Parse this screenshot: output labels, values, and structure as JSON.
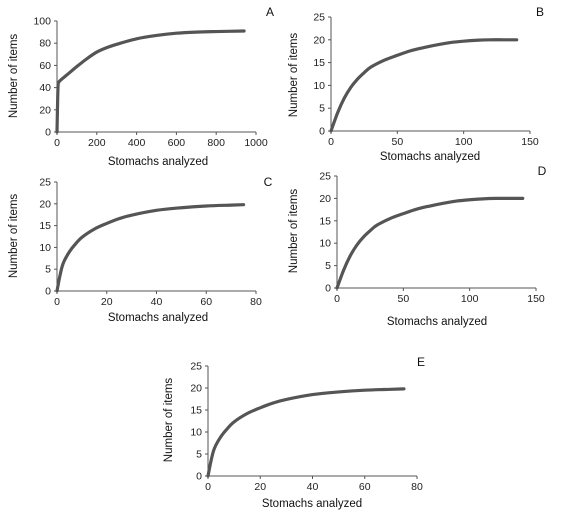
{
  "chart_data": [
    {
      "panel": "A",
      "type": "line",
      "xlabel": "Stomachs analyzed",
      "ylabel": "Number of items",
      "xlim": [
        0,
        1000
      ],
      "ylim": [
        0,
        100
      ],
      "xticks": [
        0,
        200,
        400,
        600,
        800,
        1000
      ],
      "yticks": [
        0,
        20,
        40,
        60,
        80,
        100
      ],
      "x": [
        0,
        5,
        10,
        20,
        40,
        60,
        100,
        150,
        200,
        250,
        300,
        400,
        500,
        600,
        700,
        800,
        940
      ],
      "y": [
        0,
        40,
        45,
        47,
        50,
        53,
        59,
        66,
        72,
        76,
        79,
        84,
        87,
        89,
        90,
        90.5,
        91
      ]
    },
    {
      "panel": "B",
      "type": "line",
      "xlabel": "Stomachs analyzed",
      "ylabel": "Number of items",
      "xlim": [
        0,
        150
      ],
      "ylim": [
        0,
        25
      ],
      "xticks": [
        0,
        50,
        100,
        150
      ],
      "yticks": [
        0,
        5,
        10,
        15,
        20,
        25
      ],
      "x": [
        0,
        5,
        10,
        15,
        20,
        25,
        30,
        40,
        50,
        60,
        70,
        80,
        90,
        100,
        110,
        120,
        130,
        140
      ],
      "y": [
        0,
        4,
        7.2,
        9.6,
        11.4,
        12.8,
        14,
        15.5,
        16.6,
        17.6,
        18.3,
        18.9,
        19.4,
        19.7,
        19.9,
        20,
        20,
        20
      ]
    },
    {
      "panel": "C",
      "type": "line",
      "xlabel": "Stomachs analyzed",
      "ylabel": "Number of items",
      "xlim": [
        0,
        80
      ],
      "ylim": [
        0,
        25
      ],
      "xticks": [
        0,
        20,
        40,
        60,
        80
      ],
      "yticks": [
        0,
        5,
        10,
        15,
        20,
        25
      ],
      "x": [
        0,
        1,
        2,
        3,
        5,
        7,
        10,
        15,
        20,
        25,
        30,
        40,
        50,
        60,
        70,
        75
      ],
      "y": [
        0,
        3,
        5.5,
        7,
        9,
        10.5,
        12.3,
        14.2,
        15.5,
        16.6,
        17.4,
        18.5,
        19.1,
        19.5,
        19.7,
        19.8
      ]
    },
    {
      "panel": "D",
      "type": "line",
      "xlabel": "Stomachs analyzed",
      "ylabel": "Number of items",
      "xlim": [
        0,
        150
      ],
      "ylim": [
        0,
        25
      ],
      "xticks": [
        0,
        50,
        100,
        150
      ],
      "yticks": [
        0,
        5,
        10,
        15,
        20,
        25
      ],
      "x": [
        0,
        5,
        10,
        15,
        20,
        25,
        30,
        40,
        50,
        60,
        70,
        80,
        90,
        100,
        110,
        120,
        130,
        140
      ],
      "y": [
        0,
        4,
        7.2,
        9.6,
        11.4,
        12.8,
        14,
        15.5,
        16.6,
        17.6,
        18.3,
        18.9,
        19.4,
        19.7,
        19.9,
        20,
        20,
        20
      ]
    },
    {
      "panel": "E",
      "type": "line",
      "xlabel": "Stomachs analyzed",
      "ylabel": "Number of items",
      "xlim": [
        0,
        80
      ],
      "ylim": [
        0,
        25
      ],
      "xticks": [
        0,
        20,
        40,
        60,
        80
      ],
      "yticks": [
        0,
        5,
        10,
        15,
        20,
        25
      ],
      "x": [
        0,
        1,
        2,
        3,
        5,
        7,
        10,
        15,
        20,
        25,
        30,
        40,
        50,
        60,
        70,
        75
      ],
      "y": [
        0,
        3,
        5.5,
        7,
        9,
        10.5,
        12.3,
        14.2,
        15.5,
        16.6,
        17.4,
        18.5,
        19.1,
        19.5,
        19.7,
        19.8
      ]
    }
  ]
}
